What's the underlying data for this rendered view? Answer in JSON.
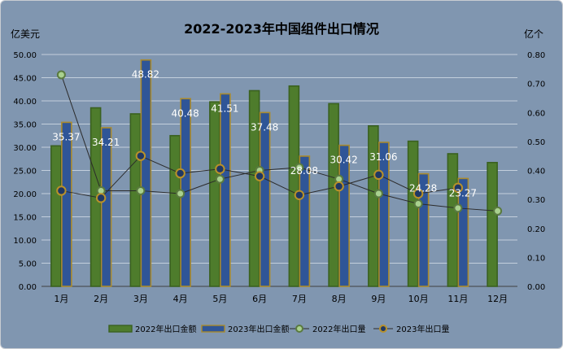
{
  "chart_data": {
    "type": "bar",
    "title": "2022-2023年中国组件出口情况",
    "y_left_label": "亿美元",
    "y_right_label": "亿个",
    "categories": [
      "1月",
      "2月",
      "3月",
      "4月",
      "5月",
      "6月",
      "7月",
      "8月",
      "9月",
      "10月",
      "11月",
      "12月"
    ],
    "y_left_ticks": [
      "0.00",
      "5.00",
      "10.00",
      "15.00",
      "20.00",
      "25.00",
      "30.00",
      "35.00",
      "40.00",
      "45.00",
      "50.00"
    ],
    "y_right_ticks": [
      "0.00",
      "0.10",
      "0.20",
      "0.30",
      "0.40",
      "0.50",
      "0.60",
      "0.70",
      "0.80"
    ],
    "ylim_left": [
      0,
      50
    ],
    "ylim_right": [
      0,
      0.8
    ],
    "grid": true,
    "legend_position": "bottom",
    "series": [
      {
        "name": "2022年出口金额",
        "kind": "bar",
        "axis": "left",
        "color": "#4e7c2c",
        "values": [
          30.3,
          38.5,
          37.2,
          32.5,
          39.8,
          42.2,
          43.2,
          39.4,
          34.6,
          31.3,
          28.6,
          26.7
        ]
      },
      {
        "name": "2023年出口金额",
        "kind": "bar",
        "axis": "left",
        "color": "#2f5597",
        "values": [
          35.37,
          34.21,
          48.82,
          40.48,
          41.51,
          37.48,
          28.08,
          30.42,
          31.06,
          24.28,
          23.27,
          null
        ],
        "labels": [
          "35.37",
          "34.21",
          "48.82",
          "40.48",
          "41.51",
          "37.48",
          "28.08",
          "30.42",
          "31.06",
          "24.28",
          "23.27",
          ""
        ]
      },
      {
        "name": "2022年出口量",
        "kind": "line",
        "axis": "right",
        "color": "#a9d18e",
        "values": [
          0.73,
          0.33,
          0.33,
          0.32,
          0.37,
          0.4,
          0.41,
          0.37,
          0.32,
          0.285,
          0.27,
          0.26
        ]
      },
      {
        "name": "2023年出口量",
        "kind": "line",
        "axis": "right",
        "color": "#203864",
        "values": [
          0.33,
          0.305,
          0.45,
          0.39,
          0.405,
          0.38,
          0.315,
          0.345,
          0.385,
          0.32,
          0.34,
          null
        ]
      }
    ]
  }
}
